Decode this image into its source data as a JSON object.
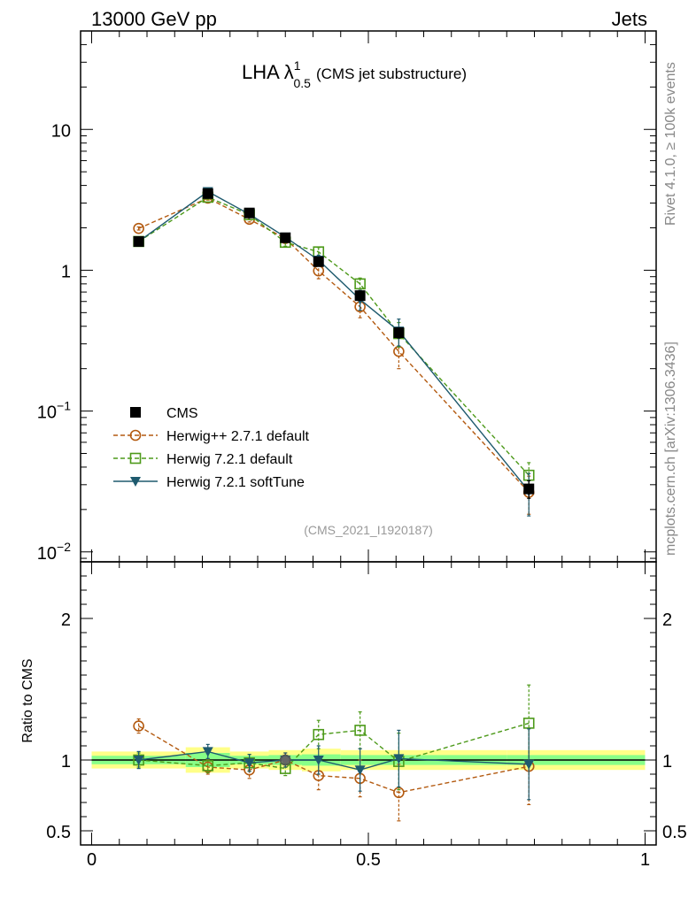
{
  "header": {
    "left": "13000 GeV pp",
    "right": "Jets",
    "side_top": "Rivet 4.1.0, ≥ 100k events",
    "side_bottom": "mcplots.cern.ch [arXiv:1306.3436]"
  },
  "colors": {
    "cms": "#000000",
    "herwigpp": "#b35a10",
    "herwig721": "#4d9a1a",
    "softtune": "#1e5a6e",
    "band_outer": "#ffff88",
    "band_inner": "#88ff88"
  },
  "chart_data": [
    {
      "type": "line",
      "title": "LHA λ",
      "title_sup": "1",
      "title_sub": "0.5",
      "title_suffix": "(CMS jet substructure)",
      "analysis_label": "(CMS_2021_I1920187)",
      "yscale": "log",
      "ylim": [
        0.0085,
        50
      ],
      "xlim": [
        -0.02,
        1.02
      ],
      "y_ticks": [
        {
          "value": 10,
          "base": "10",
          "exp": ""
        },
        {
          "value": 1,
          "base": "1",
          "exp": ""
        },
        {
          "value": 0.1,
          "base": "10",
          "exp": "−1"
        },
        {
          "value": 0.01,
          "base": "10",
          "exp": "−2"
        }
      ],
      "legend_position": "lower-left",
      "x": [
        0.085,
        0.21,
        0.285,
        0.35,
        0.41,
        0.485,
        0.555,
        0.79
      ],
      "series": [
        {
          "name": "CMS",
          "key": "cms",
          "marker": "square-filled",
          "line": "none",
          "values": [
            1.6,
            3.5,
            2.55,
            1.7,
            1.15,
            0.66,
            0.36,
            0.028
          ],
          "errors": [
            0.1,
            0.2,
            0.12,
            0.08,
            0.07,
            0.05,
            0.03,
            0.004
          ]
        },
        {
          "name": "Herwig++ 2.7.1 default",
          "key": "herwigpp",
          "marker": "circle-open",
          "line": "dashed",
          "values": [
            1.98,
            3.25,
            2.3,
            1.68,
            0.99,
            0.55,
            0.265,
            0.0265
          ],
          "errors": [
            0.05,
            0.1,
            0.1,
            0.1,
            0.12,
            0.09,
            0.065,
            0.008
          ]
        },
        {
          "name": "Herwig 7.2.1 default",
          "key": "herwig721",
          "marker": "square-open",
          "line": "dashed",
          "values": [
            1.6,
            3.3,
            2.48,
            1.58,
            1.35,
            0.8,
            0.355,
            0.035
          ],
          "errors": [
            0.05,
            0.1,
            0.1,
            0.1,
            0.1,
            0.08,
            0.07,
            0.008
          ]
        },
        {
          "name": "Herwig 7.2.1 softTune",
          "key": "softtune",
          "marker": "triangle-down-filled",
          "line": "solid",
          "values": [
            1.6,
            3.62,
            2.5,
            1.72,
            1.18,
            0.62,
            0.37,
            0.027
          ],
          "errors": [
            0.05,
            0.15,
            0.1,
            0.08,
            0.1,
            0.1,
            0.08,
            0.009
          ]
        }
      ]
    },
    {
      "type": "line",
      "ylabel": "Ratio to CMS",
      "ylim": [
        0.4,
        2.4
      ],
      "y_ticks": [
        2,
        1,
        0.5
      ],
      "y_tick_labels": [
        "2",
        "1",
        "0.5"
      ],
      "x_ticks": [
        0,
        0.5,
        1
      ],
      "x_tick_labels": [
        "0",
        "0.5",
        "1"
      ],
      "bands": {
        "edges": [
          0.0,
          0.17,
          0.25,
          0.32,
          0.38,
          0.45,
          0.52,
          0.6,
          0.75,
          1.0
        ],
        "outer": [
          0.06,
          0.09,
          0.06,
          0.07,
          0.08,
          0.07,
          0.07,
          0.07,
          0.07
        ],
        "inner": [
          0.03,
          0.05,
          0.03,
          0.035,
          0.04,
          0.035,
          0.035,
          0.035,
          0.035
        ]
      },
      "series": [
        {
          "key": "cms",
          "values": [
            1,
            1,
            1,
            1,
            1,
            1,
            1,
            1
          ]
        },
        {
          "key": "herwigpp",
          "values": [
            1.24,
            0.95,
            0.93,
            1.0,
            0.89,
            0.87,
            0.77,
            0.955
          ],
          "errors": [
            0.05,
            0.05,
            0.06,
            0.05,
            0.1,
            0.13,
            0.2,
            0.27
          ]
        },
        {
          "key": "herwig721",
          "values": [
            1.0,
            0.96,
            0.98,
            0.94,
            1.18,
            1.21,
            0.99,
            1.26
          ],
          "errors": [
            0.05,
            0.05,
            0.06,
            0.05,
            0.1,
            0.13,
            0.2,
            0.27
          ]
        },
        {
          "key": "softtune",
          "values": [
            1.0,
            1.06,
            0.98,
            1.0,
            1.0,
            0.93,
            1.01,
            0.97
          ],
          "errors": [
            0.06,
            0.05,
            0.06,
            0.05,
            0.1,
            0.15,
            0.2,
            0.25
          ]
        }
      ]
    }
  ]
}
